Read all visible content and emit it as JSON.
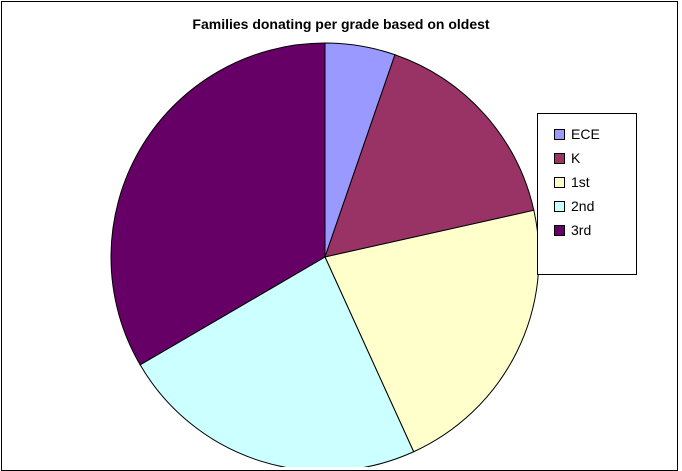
{
  "chart_data": {
    "type": "pie",
    "title": "Families donating per grade based on oldest",
    "categories": [
      "ECE",
      "K",
      "1st",
      "2nd",
      "3rd"
    ],
    "values": [
      5.3,
      16.2,
      21.7,
      23.4,
      33.4
    ],
    "colors": [
      "#9999ff",
      "#993366",
      "#ffffcc",
      "#ccffff",
      "#660066"
    ],
    "legend_position": "right",
    "start_angle": "12 o'clock",
    "direction": "clockwise"
  }
}
